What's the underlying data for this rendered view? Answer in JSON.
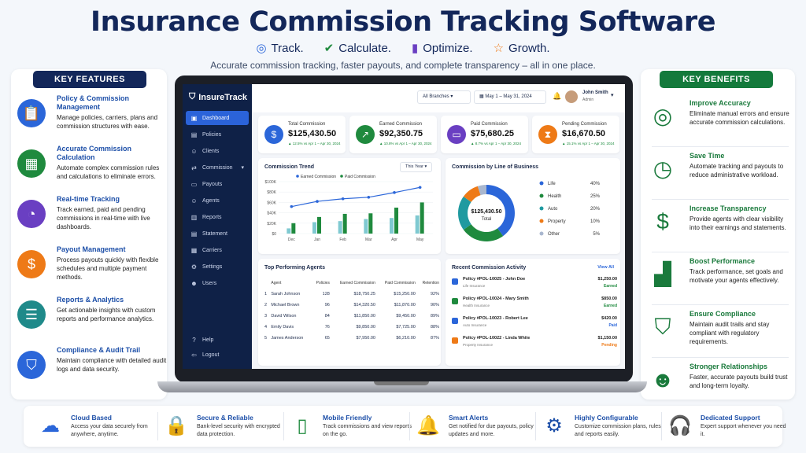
{
  "header": {
    "title": "Insurance Commission Tracking Software",
    "taglines": [
      "Track.",
      "Calculate.",
      "Optimize.",
      "Growth."
    ],
    "subtitle": "Accurate commission tracking, faster payouts, and complete transparency – all in one place."
  },
  "features": {
    "title": "KEY FEATURES",
    "items": [
      {
        "title": "Policy & Commission Management",
        "desc": "Manage policies, carriers, plans and commission structures with ease.",
        "icon": "clipboard-icon",
        "color": "#2b66d9"
      },
      {
        "title": "Accurate Commission Calculation",
        "desc": "Automate complex commission rules and calculations to eliminate errors.",
        "icon": "calculator-icon",
        "color": "#1f8a3e"
      },
      {
        "title": "Real-time Tracking",
        "desc": "Track earned, paid and pending commissions in real-time with live dashboards.",
        "icon": "pie-chart-icon",
        "color": "#6a3fc2"
      },
      {
        "title": "Payout Management",
        "desc": "Process payouts quickly with flexible schedules and multiple payment methods.",
        "icon": "money-bag-icon",
        "color": "#ee7a17"
      },
      {
        "title": "Reports & Analytics",
        "desc": "Get actionable insights with custom reports and performance analytics.",
        "icon": "report-icon",
        "color": "#1f8a8a"
      },
      {
        "title": "Compliance & Audit Trail",
        "desc": "Maintain compliance with detailed audit logs and data security.",
        "icon": "shield-icon",
        "color": "#2b66d9"
      }
    ]
  },
  "benefits": {
    "title": "KEY BENEFITS",
    "items": [
      {
        "title": "Improve Accuracy",
        "desc": "Eliminate manual errors and ensure accurate commission calculations.",
        "icon": "target-icon"
      },
      {
        "title": "Save Time",
        "desc": "Automate tracking and payouts to reduce administrative workload.",
        "icon": "clock-icon"
      },
      {
        "title": "Increase Transparency",
        "desc": "Provide agents with clear visibility into their earnings and statements.",
        "icon": "dollar-icon"
      },
      {
        "title": "Boost Performance",
        "desc": "Track performance, set goals and motivate your agents effectively.",
        "icon": "bar-growth-icon"
      },
      {
        "title": "Ensure Compliance",
        "desc": "Maintain audit trails and stay compliant with regulatory requirements.",
        "icon": "check-shield-icon"
      },
      {
        "title": "Stronger Relationships",
        "desc": "Faster, accurate payouts build trust and long-term loyalty.",
        "icon": "people-icon"
      }
    ]
  },
  "app": {
    "name": "InsureTrack",
    "nav": [
      "Dashboard",
      "Policies",
      "Clients",
      "Commission",
      "Payouts",
      "Agents",
      "Reports",
      "Statement",
      "Carriers",
      "Settings",
      "Users"
    ],
    "nav_bottom": [
      "Help",
      "Logout"
    ],
    "branch": "All Branches",
    "date_range": "May 1 – May 31, 2024",
    "user_name": "John Smith",
    "user_role": "Admin",
    "kpis": [
      {
        "label": "Total Commission",
        "value": "$125,430.50",
        "delta": "▲ 12.5% vs Apr 1 – Apr 30, 2024",
        "color": "#2b66d9",
        "icon": "$"
      },
      {
        "label": "Earned Commission",
        "value": "$92,350.75",
        "delta": "▲ 10.8% vs Apr 1 – Apr 30, 2024",
        "color": "#1f8a3e",
        "icon": "↗"
      },
      {
        "label": "Paid Commission",
        "value": "$75,680.25",
        "delta": "▲ 8.7% vs Apr 1 – Apr 30, 2024",
        "color": "#6a3fc2",
        "icon": "▭"
      },
      {
        "label": "Pending Commission",
        "value": "$16,670.50",
        "delta": "▲ 15.1% vs Apr 1 – Apr 30, 2024",
        "color": "#ee7a17",
        "icon": "⧗"
      }
    ],
    "trend": {
      "title": "Commission Trend",
      "period": "This Year"
    },
    "lob": {
      "title": "Commission by Line of Business",
      "center_value": "$125,430.50",
      "center_label": "Total"
    },
    "agents": {
      "title": "Top Performing Agents",
      "headers": [
        "",
        "Agent",
        "Policies",
        "Earned Commission",
        "Paid Commission",
        "Retention"
      ],
      "rows": [
        [
          "1",
          "Sarah Johnson",
          "128",
          "$18,750.25",
          "$15,250.00",
          "92%"
        ],
        [
          "2",
          "Michael Brown",
          "96",
          "$14,320.50",
          "$11,870.00",
          "90%"
        ],
        [
          "3",
          "David Wilson",
          "84",
          "$11,850.00",
          "$9,450.00",
          "89%"
        ],
        [
          "4",
          "Emily Davis",
          "76",
          "$9,850.00",
          "$7,725.00",
          "88%"
        ],
        [
          "5",
          "James Anderson",
          "65",
          "$7,950.00",
          "$6,210.00",
          "87%"
        ]
      ]
    },
    "activity": {
      "title": "Recent Commission Activity",
      "view_all": "View All",
      "items": [
        {
          "title": "Policy #POL-10025 - John Doe",
          "type": "Life Insurance",
          "amount": "$1,250.00",
          "status": "Earned",
          "status_color": "#1f8a3e",
          "icon_color": "#2b66d9"
        },
        {
          "title": "Policy #POL-10024 - Mary Smith",
          "type": "Health Insurance",
          "amount": "$850.00",
          "status": "Earned",
          "status_color": "#1f8a3e",
          "icon_color": "#1f8a3e"
        },
        {
          "title": "Policy #POL-10023 - Robert Lee",
          "type": "Auto Insurance",
          "amount": "$420.00",
          "status": "Paid",
          "status_color": "#2b66d9",
          "icon_color": "#2b66d9"
        },
        {
          "title": "Policy #POL-10022 - Linda White",
          "type": "Property Insurance",
          "amount": "$1,150.00",
          "status": "Pending",
          "status_color": "#ee7a17",
          "icon_color": "#ee7a17"
        }
      ]
    }
  },
  "chart_data": [
    {
      "type": "bar",
      "title": "Commission Trend",
      "categories": [
        "Dec",
        "Jan",
        "Feb",
        "Mar",
        "Apr",
        "May"
      ],
      "ytick_labels": [
        "$0",
        "$20K",
        "$40K",
        "$60K",
        "$80K",
        "$100K"
      ],
      "ylim": [
        0,
        100000
      ],
      "legend": "top",
      "series": [
        {
          "name": "Earned Commission",
          "kind": "line",
          "color": "#2b66d9",
          "values": [
            52000,
            62000,
            67000,
            70000,
            79000,
            89000
          ]
        },
        {
          "name": "Paid Commission",
          "kind": "bar",
          "color": "#1f8a3e",
          "values": [
            20000,
            32000,
            38000,
            39000,
            50000,
            60000
          ]
        },
        {
          "name": "",
          "kind": "bar",
          "color": "#7fc9d1",
          "values": [
            10000,
            22000,
            24000,
            28000,
            30000,
            35000
          ]
        }
      ]
    },
    {
      "type": "pie",
      "title": "Commission by Line of Business",
      "labels": [
        "Life",
        "Health",
        "Auto",
        "Property",
        "Other"
      ],
      "values": [
        40,
        25,
        20,
        10,
        5
      ],
      "value_labels": [
        "40%",
        "25%",
        "20%",
        "10%",
        "5%"
      ],
      "colors": [
        "#2b66d9",
        "#1f8a3e",
        "#1f9aa0",
        "#ee7a17",
        "#a9b7cf"
      ]
    }
  ],
  "footer": [
    {
      "title": "Cloud Based",
      "desc": "Access your data securely from anywhere, anytime.",
      "icon": "cloud-icon",
      "color": "#2b66d9",
      "glyph": "☁"
    },
    {
      "title": "Secure & Reliable",
      "desc": "Bank-level security with encrypted data protection.",
      "icon": "lock-icon",
      "color": "#6a3fc2",
      "glyph": "🔒"
    },
    {
      "title": "Mobile Friendly",
      "desc": "Track commissions and view reports on the go.",
      "icon": "mobile-icon",
      "color": "#1f8a3e",
      "glyph": "▯"
    },
    {
      "title": "Smart Alerts",
      "desc": "Get notified for due payouts, policy updates and more.",
      "icon": "bell-icon",
      "color": "#ee7a17",
      "glyph": "🔔"
    },
    {
      "title": "Highly Configurable",
      "desc": "Customize commission plans, rules and reports easily.",
      "icon": "gear-icon",
      "color": "#1d4fa8",
      "glyph": "⚙"
    },
    {
      "title": "Dedicated Support",
      "desc": "Expert support whenever you need it.",
      "icon": "headset-icon",
      "color": "#1f8a8a",
      "glyph": "🎧"
    }
  ]
}
